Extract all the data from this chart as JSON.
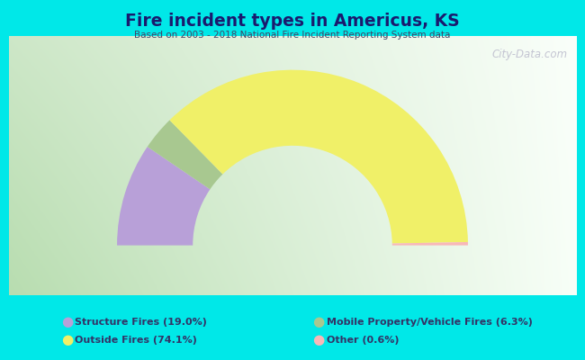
{
  "title": "Fire incident types in Americus, KS",
  "subtitle": "Based on 2003 - 2018 National Fire Incident Reporting System data",
  "title_color": "#1a1a6e",
  "subtitle_color": "#444466",
  "bg_color": "#00e8e8",
  "watermark": "City-Data.com",
  "segments": [
    {
      "label": "Structure Fires (19.0%)",
      "value": 19.0,
      "color": "#b8a0d8"
    },
    {
      "label": "Outside Fires (74.1%)",
      "value": 74.1,
      "color": "#f0f068"
    },
    {
      "label": "Mobile Property/Vehicle Fires (6.3%)",
      "value": 6.3,
      "color": "#a8c890"
    },
    {
      "label": "Other (0.6%)",
      "value": 0.6,
      "color": "#f8b8b8"
    }
  ],
  "legend_colors": [
    "#b8a0d8",
    "#f0f068",
    "#a8c890",
    "#f8b8b8"
  ],
  "donut_outer_r": 0.88,
  "donut_inner_r": 0.5,
  "order": [
    0,
    2,
    1,
    3
  ],
  "chart_area": [
    0.015,
    0.18,
    0.97,
    0.72
  ],
  "grad_left": "#b8ddb0",
  "grad_right": "#f0f8f0"
}
